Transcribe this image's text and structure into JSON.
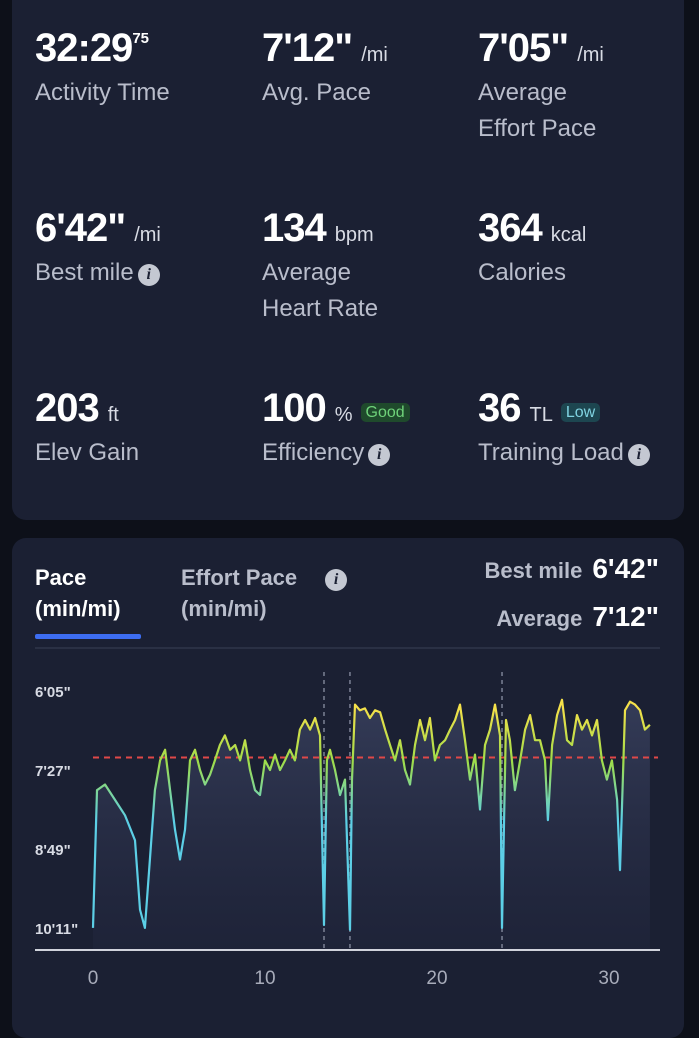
{
  "stats": [
    {
      "value": "32:29",
      "sup": "75",
      "label": [
        "Activity Time"
      ]
    },
    {
      "value": "7'12\"",
      "unit": "/mi",
      "label": [
        "Avg. Pace"
      ]
    },
    {
      "value": "7'05\"",
      "unit": "/mi",
      "label": [
        "Average",
        "Effort Pace"
      ]
    },
    {
      "value": "6'42\"",
      "unit": "/mi",
      "label": [
        "Best mile"
      ],
      "info": true
    },
    {
      "value": "134",
      "unit": "bpm",
      "label": [
        "Average",
        "Heart Rate"
      ]
    },
    {
      "value": "364",
      "unit": "kcal",
      "label": [
        "Calories"
      ]
    },
    {
      "value": "203",
      "unit": "ft",
      "label": [
        "Elev Gain"
      ]
    },
    {
      "value": "100",
      "unit": "%",
      "badge": "Good",
      "badge_kind": "good",
      "label": [
        "Efficiency"
      ],
      "info": true
    },
    {
      "value": "36",
      "unit": "TL",
      "badge": "Low",
      "badge_kind": "low",
      "label": [
        "Training Load"
      ],
      "info": true
    }
  ],
  "chart_card": {
    "tabs": [
      {
        "label": [
          "Pace",
          "(min/mi)"
        ],
        "active": true
      },
      {
        "label": [
          "Effort Pace",
          "(min/mi)"
        ],
        "info": true
      }
    ],
    "summary": [
      {
        "label": "Best mile",
        "value": "6'42\""
      },
      {
        "label": "Average",
        "value": "7'12\""
      }
    ]
  },
  "chart_data": {
    "type": "line",
    "xlim": [
      0,
      32.5
    ],
    "xticks": [
      0,
      10,
      20,
      30
    ],
    "ylim": [
      632,
      352
    ],
    "yticks": [
      {
        "value": 365,
        "label": "6'05\""
      },
      {
        "value": 447,
        "label": "7'27\""
      },
      {
        "value": 529,
        "label": "8'49\""
      },
      {
        "value": 611,
        "label": "10'11\""
      }
    ],
    "reference_line": 432,
    "reference_color": "#e04848",
    "markers": [
      13.43,
      14.94,
      23.78
    ],
    "colors": [
      "#f5e14a",
      "#9fdc4a",
      "#5ccfe6"
    ],
    "x": [
      0,
      0.23,
      0.7,
      1.28,
      1.86,
      2.44,
      2.73,
      3.02,
      3.31,
      3.6,
      3.9,
      4.19,
      4.48,
      4.77,
      5.06,
      5.35,
      5.64,
      5.93,
      6.22,
      6.51,
      6.8,
      7.09,
      7.38,
      7.67,
      7.97,
      8.26,
      8.55,
      8.84,
      9.13,
      9.42,
      9.71,
      10.0,
      10.29,
      10.58,
      10.87,
      11.16,
      11.45,
      11.74,
      12.03,
      12.33,
      12.62,
      12.91,
      13.2,
      13.43,
      13.6,
      13.78,
      14.07,
      14.36,
      14.65,
      14.94,
      15.06,
      15.23,
      15.52,
      15.81,
      16.1,
      16.4,
      16.69,
      16.98,
      17.27,
      17.56,
      17.85,
      18.14,
      18.43,
      18.72,
      19.01,
      19.3,
      19.59,
      19.88,
      20.17,
      20.47,
      20.76,
      21.05,
      21.34,
      21.63,
      21.92,
      22.21,
      22.5,
      22.79,
      23.08,
      23.37,
      23.66,
      23.78,
      24.01,
      24.24,
      24.53,
      24.83,
      25.12,
      25.41,
      25.7,
      25.99,
      26.28,
      26.45,
      26.69,
      26.98,
      27.27,
      27.56,
      27.85,
      28.14,
      28.43,
      28.72,
      29.01,
      29.3,
      29.59,
      29.88,
      30.17,
      30.47,
      30.64,
      30.93,
      31.22,
      31.51,
      31.8,
      32.09,
      32.38
    ],
    "values": [
      609,
      466,
      460,
      476,
      492,
      518,
      590,
      609,
      538,
      466,
      435,
      424,
      466,
      507,
      538,
      507,
      435,
      424,
      445,
      460,
      450,
      435,
      419,
      409,
      424,
      419,
      435,
      414,
      445,
      466,
      471,
      435,
      445,
      429,
      445,
      435,
      424,
      435,
      403,
      393,
      403,
      391,
      409,
      606,
      435,
      424,
      445,
      471,
      455,
      611,
      455,
      377,
      383,
      381,
      391,
      383,
      385,
      403,
      419,
      435,
      414,
      445,
      460,
      419,
      393,
      414,
      391,
      435,
      419,
      414,
      403,
      393,
      377,
      414,
      455,
      429,
      486,
      419,
      403,
      377,
      409,
      609,
      393,
      414,
      466,
      435,
      403,
      388,
      414,
      414,
      435,
      497,
      419,
      388,
      372,
      414,
      419,
      388,
      403,
      393,
      409,
      393,
      435,
      455,
      435,
      476,
      549,
      383,
      374,
      377,
      383,
      403,
      398
    ]
  }
}
